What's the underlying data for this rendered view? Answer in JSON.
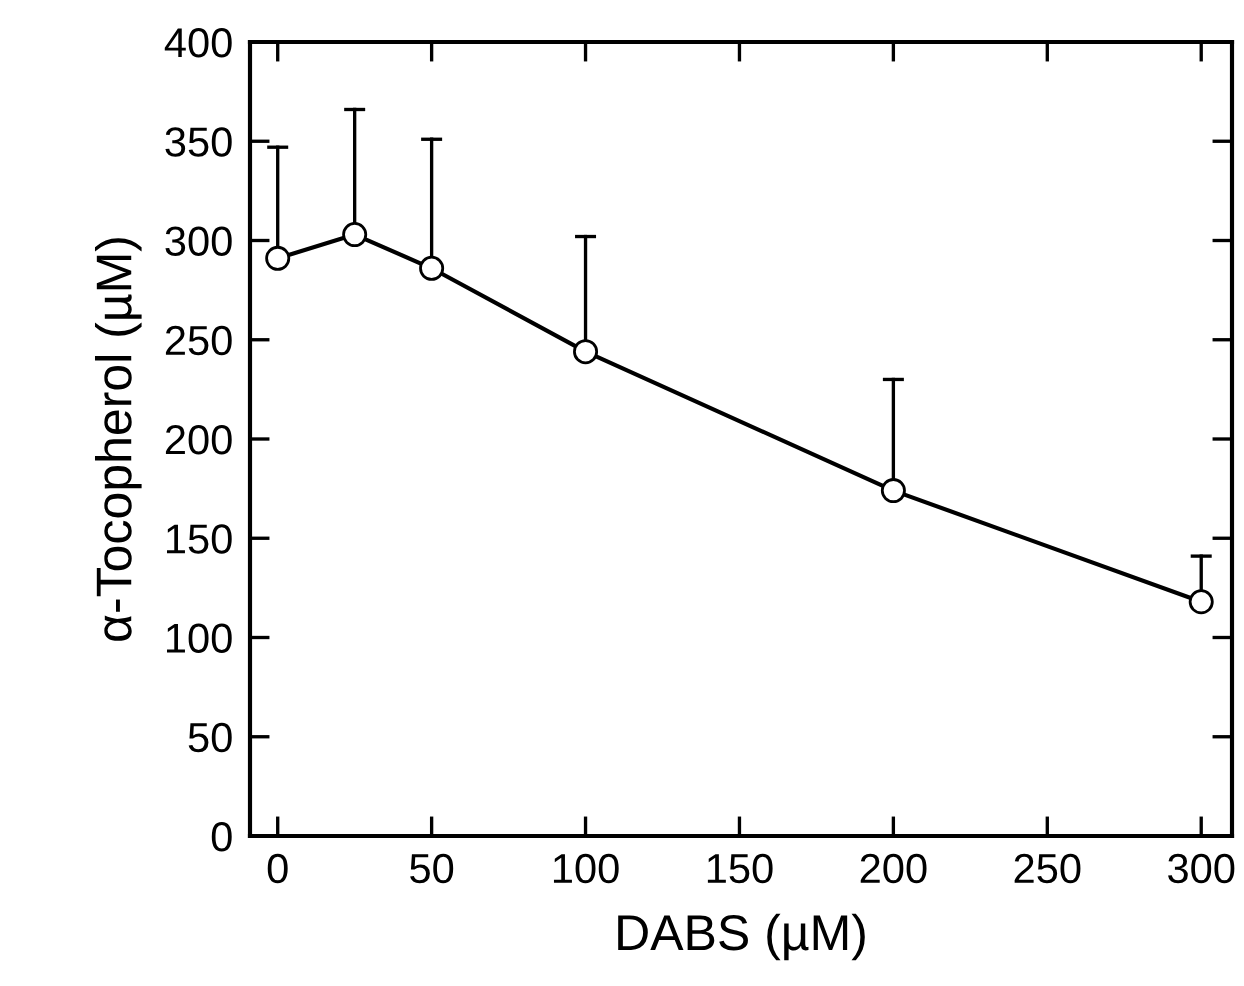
{
  "chart_data": {
    "type": "line",
    "xlabel": "DABS (µM)",
    "ylabel": "α-Tocopherol (µM)",
    "x": [
      0,
      25,
      50,
      100,
      200,
      300
    ],
    "series": [
      {
        "color": "#000000",
        "values": [
          291,
          303,
          286,
          244,
          174,
          118
        ],
        "errors": [
          [
            291,
            347
          ],
          [
            303,
            366
          ],
          [
            286,
            351
          ],
          [
            244,
            302
          ],
          [
            174,
            230
          ],
          [
            118,
            141
          ]
        ]
      }
    ],
    "xlim": [
      -9,
      310
    ],
    "ylim": [
      0,
      400
    ],
    "xticks": [
      0,
      50,
      100,
      150,
      200,
      250,
      300
    ],
    "yticks": [
      0,
      50,
      100,
      150,
      200,
      250,
      300,
      350,
      400
    ],
    "marker": "circle",
    "line_style": "solid",
    "grid": false,
    "legend": false
  }
}
